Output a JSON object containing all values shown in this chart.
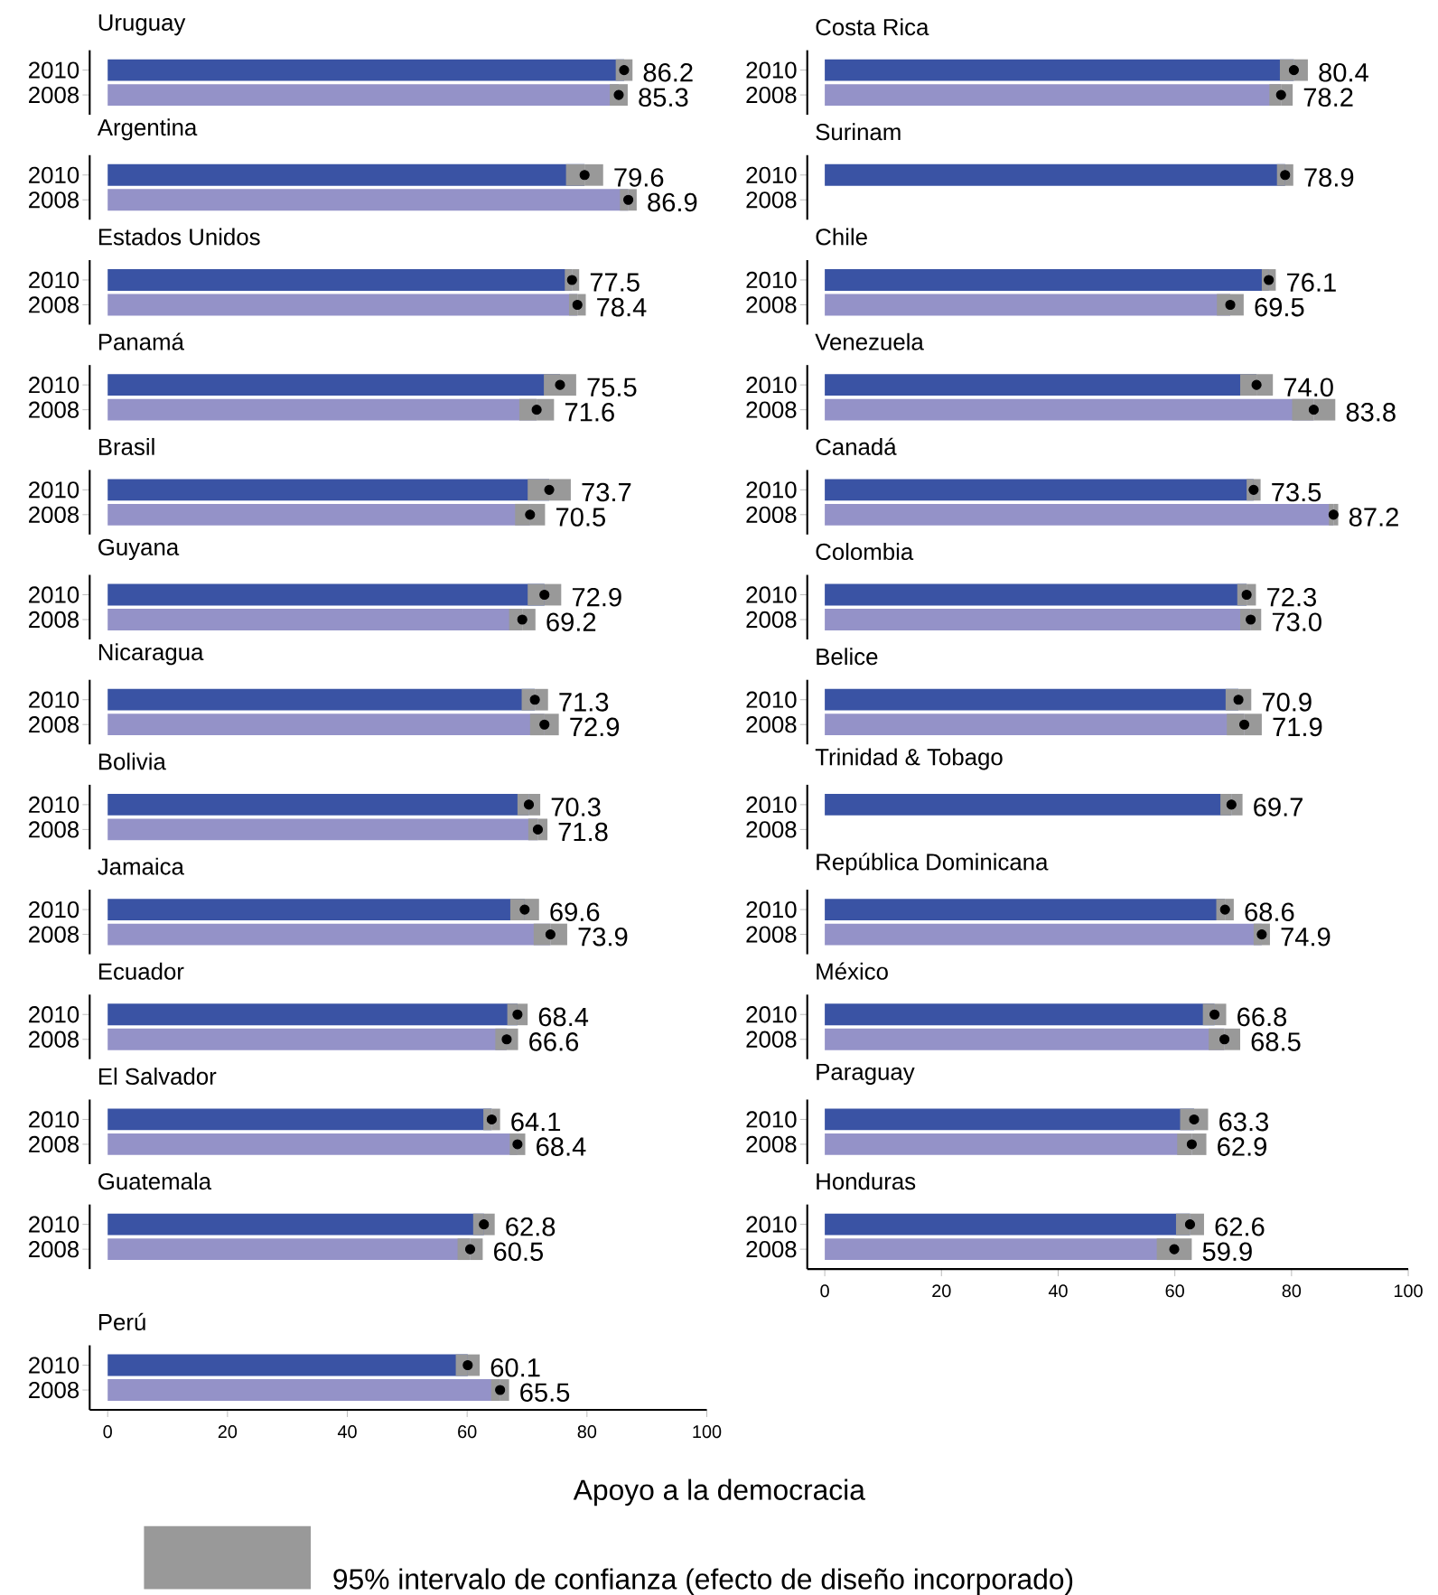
{
  "chart_data": [
    {
      "type": "bar",
      "orientation": "horizontal",
      "title": "Uruguay",
      "categories": [
        "2010",
        "2008"
      ],
      "marker": "circle",
      "xlim": [
        -3,
        100
      ],
      "tick_labels": "y",
      "series": [
        {
          "values": [
            86.2,
            85.3
          ],
          "value_labels": [
            "86.2",
            "85.3"
          ],
          "errors": [
            1.4,
            1.5
          ],
          "colors": [
            "#3a53a4",
            "#9492c8"
          ]
        },
        {
          "type": "scatter",
          "values": [
            86.2,
            85.3
          ],
          "color": "#000000"
        }
      ]
    },
    {
      "type": "bar",
      "orientation": "horizontal",
      "title": "Argentina",
      "categories": [
        "2010",
        "2008"
      ],
      "marker": "circle",
      "xlim": [
        -3,
        100
      ],
      "tick_labels": "y",
      "series": [
        {
          "values": [
            79.6,
            86.9
          ],
          "value_labels": [
            "79.6",
            "86.9"
          ],
          "errors": [
            3.1,
            1.4
          ],
          "colors": [
            "#3a53a4",
            "#9492c8"
          ]
        },
        {
          "type": "scatter",
          "values": [
            79.6,
            86.9
          ],
          "color": "#000000"
        }
      ]
    },
    {
      "type": "bar",
      "orientation": "horizontal",
      "title": "Estados Unidos",
      "categories": [
        "2010",
        "2008"
      ],
      "marker": "circle",
      "xlim": [
        -3,
        100
      ],
      "tick_labels": "y",
      "series": [
        {
          "values": [
            77.5,
            78.4
          ],
          "value_labels": [
            "77.5",
            "78.4"
          ],
          "errors": [
            1.2,
            1.4
          ],
          "colors": [
            "#3a53a4",
            "#9492c8"
          ]
        },
        {
          "type": "scatter",
          "values": [
            77.5,
            78.4
          ],
          "color": "#000000"
        }
      ]
    },
    {
      "type": "bar",
      "orientation": "horizontal",
      "title": "Panamá",
      "categories": [
        "2010",
        "2008"
      ],
      "marker": "circle",
      "xlim": [
        -3,
        100
      ],
      "tick_labels": "y",
      "series": [
        {
          "values": [
            75.5,
            71.6
          ],
          "value_labels": [
            "75.5",
            "71.6"
          ],
          "errors": [
            2.7,
            2.9
          ],
          "colors": [
            "#3a53a4",
            "#9492c8"
          ]
        },
        {
          "type": "scatter",
          "values": [
            75.5,
            71.6
          ],
          "color": "#000000"
        }
      ]
    },
    {
      "type": "bar",
      "orientation": "horizontal",
      "title": "Brasil",
      "categories": [
        "2010",
        "2008"
      ],
      "marker": "circle",
      "xlim": [
        -3,
        100
      ],
      "tick_labels": "y",
      "series": [
        {
          "values": [
            73.7,
            70.5
          ],
          "value_labels": [
            "73.7",
            "70.5"
          ],
          "errors": [
            3.6,
            2.5
          ],
          "colors": [
            "#3a53a4",
            "#9492c8"
          ]
        },
        {
          "type": "scatter",
          "values": [
            73.7,
            70.5
          ],
          "color": "#000000"
        }
      ]
    },
    {
      "type": "bar",
      "orientation": "horizontal",
      "title": "Guyana",
      "categories": [
        "2010",
        "2008"
      ],
      "marker": "circle",
      "xlim": [
        -3,
        100
      ],
      "tick_labels": "y",
      "series": [
        {
          "values": [
            72.9,
            69.2
          ],
          "value_labels": [
            "72.9",
            "69.2"
          ],
          "errors": [
            2.8,
            2.2
          ],
          "colors": [
            "#3a53a4",
            "#9492c8"
          ]
        },
        {
          "type": "scatter",
          "values": [
            72.9,
            69.2
          ],
          "color": "#000000"
        }
      ]
    },
    {
      "type": "bar",
      "orientation": "horizontal",
      "title": "Nicaragua",
      "categories": [
        "2010",
        "2008"
      ],
      "marker": "circle",
      "xlim": [
        -3,
        100
      ],
      "tick_labels": "y",
      "series": [
        {
          "values": [
            71.3,
            72.9
          ],
          "value_labels": [
            "71.3",
            "72.9"
          ],
          "errors": [
            2.2,
            2.4
          ],
          "colors": [
            "#3a53a4",
            "#9492c8"
          ]
        },
        {
          "type": "scatter",
          "values": [
            71.3,
            72.9
          ],
          "color": "#000000"
        }
      ]
    },
    {
      "type": "bar",
      "orientation": "horizontal",
      "title": "Bolivia",
      "categories": [
        "2010",
        "2008"
      ],
      "marker": "circle",
      "xlim": [
        -3,
        100
      ],
      "tick_labels": "y",
      "series": [
        {
          "values": [
            70.3,
            71.8
          ],
          "value_labels": [
            "70.3",
            "71.8"
          ],
          "errors": [
            1.9,
            1.6
          ],
          "colors": [
            "#3a53a4",
            "#9492c8"
          ]
        },
        {
          "type": "scatter",
          "values": [
            70.3,
            71.8
          ],
          "color": "#000000"
        }
      ]
    },
    {
      "type": "bar",
      "orientation": "horizontal",
      "title": "Jamaica",
      "categories": [
        "2010",
        "2008"
      ],
      "marker": "circle",
      "xlim": [
        -3,
        100
      ],
      "tick_labels": "y",
      "series": [
        {
          "values": [
            69.6,
            73.9
          ],
          "value_labels": [
            "69.6",
            "73.9"
          ],
          "errors": [
            2.4,
            2.8
          ],
          "colors": [
            "#3a53a4",
            "#9492c8"
          ]
        },
        {
          "type": "scatter",
          "values": [
            69.6,
            73.9
          ],
          "color": "#000000"
        }
      ]
    },
    {
      "type": "bar",
      "orientation": "horizontal",
      "title": "Ecuador",
      "categories": [
        "2010",
        "2008"
      ],
      "marker": "circle",
      "xlim": [
        -3,
        100
      ],
      "tick_labels": "y",
      "series": [
        {
          "values": [
            68.4,
            66.6
          ],
          "value_labels": [
            "68.4",
            "66.6"
          ],
          "errors": [
            1.7,
            1.9
          ],
          "colors": [
            "#3a53a4",
            "#9492c8"
          ]
        },
        {
          "type": "scatter",
          "values": [
            68.4,
            66.6
          ],
          "color": "#000000"
        }
      ]
    },
    {
      "type": "bar",
      "orientation": "horizontal",
      "title": "El Salvador",
      "categories": [
        "2010",
        "2008"
      ],
      "marker": "circle",
      "xlim": [
        -3,
        100
      ],
      "tick_labels": "y",
      "series": [
        {
          "values": [
            64.1,
            68.4
          ],
          "value_labels": [
            "64.1",
            "68.4"
          ],
          "errors": [
            1.4,
            1.3
          ],
          "colors": [
            "#3a53a4",
            "#9492c8"
          ]
        },
        {
          "type": "scatter",
          "values": [
            64.1,
            68.4
          ],
          "color": "#000000"
        }
      ]
    },
    {
      "type": "bar",
      "orientation": "horizontal",
      "title": "Guatemala",
      "categories": [
        "2010",
        "2008"
      ],
      "marker": "circle",
      "xlim": [
        -3,
        100
      ],
      "tick_labels": "y",
      "series": [
        {
          "values": [
            62.8,
            60.5
          ],
          "value_labels": [
            "62.8",
            "60.5"
          ],
          "errors": [
            1.8,
            2.1
          ],
          "colors": [
            "#3a53a4",
            "#9492c8"
          ]
        },
        {
          "type": "scatter",
          "values": [
            62.8,
            60.5
          ],
          "color": "#000000"
        }
      ]
    },
    {
      "type": "bar",
      "orientation": "horizontal",
      "title": "Perú",
      "categories": [
        "2010",
        "2008"
      ],
      "marker": "circle",
      "xlim": [
        -3,
        100
      ],
      "xticks": [
        0,
        20,
        40,
        60,
        80,
        100
      ],
      "xlabel": "Apoyo a la democracia",
      "annotations": [
        "95% intervalo de confianza (efecto de diseño incorporado)"
      ],
      "series": [
        {
          "values": [
            60.1,
            65.5
          ],
          "value_labels": [
            "60.1",
            "65.5"
          ],
          "errors": [
            2.0,
            1.5
          ],
          "colors": [
            "#3a53a4",
            "#9492c8"
          ]
        },
        {
          "type": "scatter",
          "values": [
            60.1,
            65.5
          ],
          "color": "#000000"
        }
      ]
    },
    {
      "type": "bar",
      "orientation": "horizontal",
      "title": "Costa Rica",
      "categories": [
        "2010",
        "2008"
      ],
      "marker": "circle",
      "xlim": [
        -3,
        100
      ],
      "tick_labels": "y",
      "series": [
        {
          "values": [
            80.4,
            78.2
          ],
          "value_labels": [
            "80.4",
            "78.2"
          ],
          "errors": [
            2.4,
            2.0
          ],
          "colors": [
            "#3a53a4",
            "#9492c8"
          ]
        },
        {
          "type": "scatter",
          "values": [
            80.4,
            78.2
          ],
          "color": "#000000"
        }
      ]
    },
    {
      "type": "bar",
      "orientation": "horizontal",
      "title": "Surinam",
      "categories": [
        "2010",
        "2008"
      ],
      "marker": "circle",
      "xlim": [
        -3,
        100
      ],
      "tick_labels": "y",
      "series": [
        {
          "values": [
            78.9,
            null
          ],
          "value_labels": [
            "78.9",
            null
          ],
          "errors": [
            1.4,
            null
          ],
          "colors": [
            "#3a53a4",
            "#9492c8"
          ]
        },
        {
          "type": "scatter",
          "values": [
            78.9,
            null
          ],
          "color": "#000000"
        }
      ]
    },
    {
      "type": "bar",
      "orientation": "horizontal",
      "title": "Chile",
      "categories": [
        "2010",
        "2008"
      ],
      "marker": "circle",
      "xlim": [
        -3,
        100
      ],
      "tick_labels": "y",
      "series": [
        {
          "values": [
            76.1,
            69.5
          ],
          "value_labels": [
            "76.1",
            "69.5"
          ],
          "errors": [
            1.2,
            2.3
          ],
          "colors": [
            "#3a53a4",
            "#9492c8"
          ]
        },
        {
          "type": "scatter",
          "values": [
            76.1,
            69.5
          ],
          "color": "#000000"
        }
      ]
    },
    {
      "type": "bar",
      "orientation": "horizontal",
      "title": "Venezuela",
      "categories": [
        "2010",
        "2008"
      ],
      "marker": "circle",
      "xlim": [
        -3,
        100
      ],
      "tick_labels": "y",
      "series": [
        {
          "values": [
            74.0,
            83.8
          ],
          "value_labels": [
            "74.0",
            "83.8"
          ],
          "errors": [
            2.8,
            3.7
          ],
          "colors": [
            "#3a53a4",
            "#9492c8"
          ]
        },
        {
          "type": "scatter",
          "values": [
            74.0,
            83.8
          ],
          "color": "#000000"
        }
      ]
    },
    {
      "type": "bar",
      "orientation": "horizontal",
      "title": "Canadá",
      "categories": [
        "2010",
        "2008"
      ],
      "marker": "circle",
      "xlim": [
        -3,
        100
      ],
      "tick_labels": "y",
      "series": [
        {
          "values": [
            73.5,
            87.2
          ],
          "value_labels": [
            "73.5",
            "87.2"
          ],
          "errors": [
            1.2,
            0.8
          ],
          "colors": [
            "#3a53a4",
            "#9492c8"
          ]
        },
        {
          "type": "scatter",
          "values": [
            73.5,
            87.2
          ],
          "color": "#000000"
        }
      ]
    },
    {
      "type": "bar",
      "orientation": "horizontal",
      "title": "Colombia",
      "categories": [
        "2010",
        "2008"
      ],
      "marker": "circle",
      "xlim": [
        -3,
        100
      ],
      "tick_labels": "y",
      "series": [
        {
          "values": [
            72.3,
            73.0
          ],
          "value_labels": [
            "72.3",
            "73.0"
          ],
          "errors": [
            1.6,
            1.8
          ],
          "colors": [
            "#3a53a4",
            "#9492c8"
          ]
        },
        {
          "type": "scatter",
          "values": [
            72.3,
            73.0
          ],
          "color": "#000000"
        }
      ]
    },
    {
      "type": "bar",
      "orientation": "horizontal",
      "title": "Belice",
      "categories": [
        "2010",
        "2008"
      ],
      "marker": "circle",
      "xlim": [
        -3,
        100
      ],
      "tick_labels": "y",
      "series": [
        {
          "values": [
            70.9,
            71.9
          ],
          "value_labels": [
            "70.9",
            "71.9"
          ],
          "errors": [
            2.2,
            3.0
          ],
          "colors": [
            "#3a53a4",
            "#9492c8"
          ]
        },
        {
          "type": "scatter",
          "values": [
            70.9,
            71.9
          ],
          "color": "#000000"
        }
      ]
    },
    {
      "type": "bar",
      "orientation": "horizontal",
      "title": "Trinidad & Tobago",
      "categories": [
        "2010",
        "2008"
      ],
      "marker": "circle",
      "xlim": [
        -3,
        100
      ],
      "tick_labels": "y",
      "series": [
        {
          "values": [
            69.7,
            null
          ],
          "value_labels": [
            "69.7",
            null
          ],
          "errors": [
            1.9,
            null
          ],
          "colors": [
            "#3a53a4",
            "#9492c8"
          ]
        },
        {
          "type": "scatter",
          "values": [
            69.7,
            null
          ],
          "color": "#000000"
        }
      ]
    },
    {
      "type": "bar",
      "orientation": "horizontal",
      "title": "República Dominicana",
      "categories": [
        "2010",
        "2008"
      ],
      "marker": "circle",
      "xlim": [
        -3,
        100
      ],
      "tick_labels": "y",
      "series": [
        {
          "values": [
            68.6,
            74.9
          ],
          "value_labels": [
            "68.6",
            "74.9"
          ],
          "errors": [
            1.5,
            1.4
          ],
          "colors": [
            "#3a53a4",
            "#9492c8"
          ]
        },
        {
          "type": "scatter",
          "values": [
            68.6,
            74.9
          ],
          "color": "#000000"
        }
      ]
    },
    {
      "type": "bar",
      "orientation": "horizontal",
      "title": "México",
      "categories": [
        "2010",
        "2008"
      ],
      "marker": "circle",
      "xlim": [
        -3,
        100
      ],
      "tick_labels": "y",
      "series": [
        {
          "values": [
            66.8,
            68.5
          ],
          "value_labels": [
            "66.8",
            "68.5"
          ],
          "errors": [
            2.0,
            2.7
          ],
          "colors": [
            "#3a53a4",
            "#9492c8"
          ]
        },
        {
          "type": "scatter",
          "values": [
            66.8,
            68.5
          ],
          "color": "#000000"
        }
      ]
    },
    {
      "type": "bar",
      "orientation": "horizontal",
      "title": "Paraguay",
      "categories": [
        "2010",
        "2008"
      ],
      "marker": "circle",
      "xlim": [
        -3,
        100
      ],
      "tick_labels": "y",
      "series": [
        {
          "values": [
            63.3,
            62.9
          ],
          "value_labels": [
            "63.3",
            "62.9"
          ],
          "errors": [
            2.4,
            2.5
          ],
          "colors": [
            "#3a53a4",
            "#9492c8"
          ]
        },
        {
          "type": "scatter",
          "values": [
            63.3,
            62.9
          ],
          "color": "#000000"
        }
      ]
    },
    {
      "type": "bar",
      "orientation": "horizontal",
      "title": "Honduras",
      "categories": [
        "2010",
        "2008"
      ],
      "marker": "circle",
      "xlim": [
        -3,
        100
      ],
      "xticks": [
        0,
        20,
        40,
        60,
        80,
        100
      ],
      "series": [
        {
          "values": [
            62.6,
            59.9
          ],
          "value_labels": [
            "62.6",
            "59.9"
          ],
          "errors": [
            2.4,
            3.0
          ],
          "colors": [
            "#3a53a4",
            "#9492c8"
          ]
        },
        {
          "type": "scatter",
          "values": [
            62.6,
            59.9
          ],
          "color": "#000000"
        }
      ]
    }
  ]
}
